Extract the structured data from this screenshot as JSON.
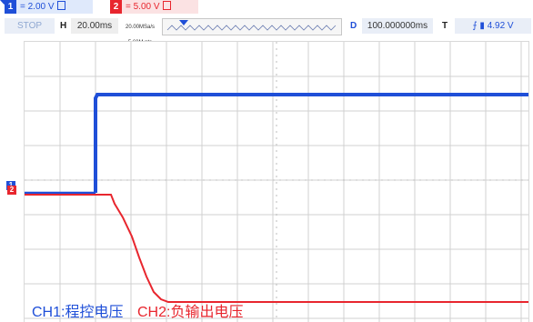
{
  "channels": [
    {
      "id": "1",
      "scale": "= 2.00 V"
    },
    {
      "id": "2",
      "scale": "= 5.00 V"
    }
  ],
  "status": {
    "run_state": "STOP",
    "h_label": "H",
    "h_time": "20.00ms",
    "sample_rate": "20.00MSa/s",
    "points": "5.60M pts",
    "d_label": "D",
    "delay": "100.000000ms",
    "t_label": "T",
    "trigger_level": "4.92 V"
  },
  "labels": {
    "ch1": "CH1:程控电压",
    "ch2": "CH2:负输出电压"
  },
  "colors": {
    "ch1": "#1f4fd8",
    "ch2": "#e8262e",
    "grid": "#cfcfcf"
  }
}
